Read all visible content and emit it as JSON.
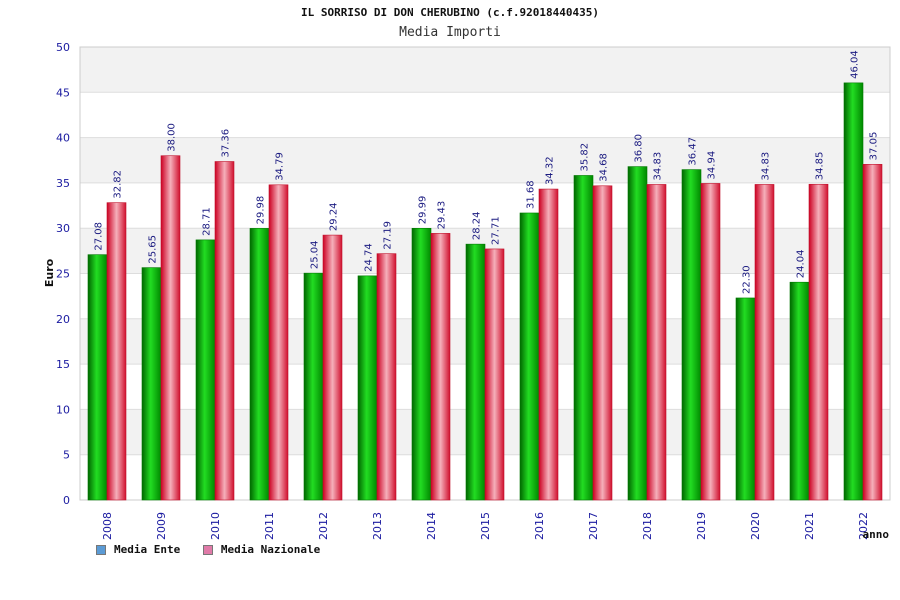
{
  "header": {
    "title": "IL SORRISO DI DON CHERUBINO (c.f.92018440435)",
    "subtitle": "Media Importi"
  },
  "legend": {
    "position": "bottom-left",
    "items": [
      {
        "label": "Media Ente",
        "color": "#5b9bd5"
      },
      {
        "label": "Media Nazionale",
        "color": "#e07aa8"
      }
    ]
  },
  "chart_data": {
    "type": "bar",
    "title": "IL SORRISO DI DON CHERUBINO (c.f.92018440435)",
    "subtitle": "Media Importi",
    "xlabel": "anno",
    "ylabel": "Euro",
    "ylim": [
      0,
      50
    ],
    "yticks": [
      0,
      5,
      10,
      15,
      20,
      25,
      30,
      35,
      40,
      45,
      50
    ],
    "grid": true,
    "categories": [
      "2008",
      "2009",
      "2010",
      "2011",
      "2012",
      "2013",
      "2014",
      "2015",
      "2016",
      "2017",
      "2018",
      "2019",
      "2020",
      "2021",
      "2022"
    ],
    "series": [
      {
        "name": "Media Ente",
        "color": "#00b000",
        "values": [
          27.08,
          25.65,
          28.71,
          29.98,
          25.04,
          24.74,
          29.99,
          28.24,
          31.68,
          35.82,
          36.8,
          36.47,
          22.3,
          24.04,
          46.04
        ],
        "labels": [
          "27.08",
          "25.65",
          "28.71",
          "29.98",
          "25.04",
          "24.74",
          "29.99",
          "28.24",
          "31.68",
          "35.82",
          "36.80",
          "36.47",
          "22.30",
          "24.04",
          "46.04"
        ]
      },
      {
        "name": "Media Nazionale",
        "color": "#e8304a",
        "values": [
          32.82,
          38.0,
          37.36,
          34.79,
          29.24,
          27.19,
          29.43,
          27.71,
          34.32,
          34.68,
          34.83,
          34.94,
          34.83,
          34.85,
          37.05
        ],
        "labels": [
          "32.82",
          "38.00",
          "37.36",
          "34.79",
          "29.24",
          "27.19",
          "29.43",
          "27.71",
          "34.32",
          "34.68",
          "34.83",
          "34.94",
          "34.83",
          "34.85",
          "37.05"
        ]
      }
    ]
  }
}
